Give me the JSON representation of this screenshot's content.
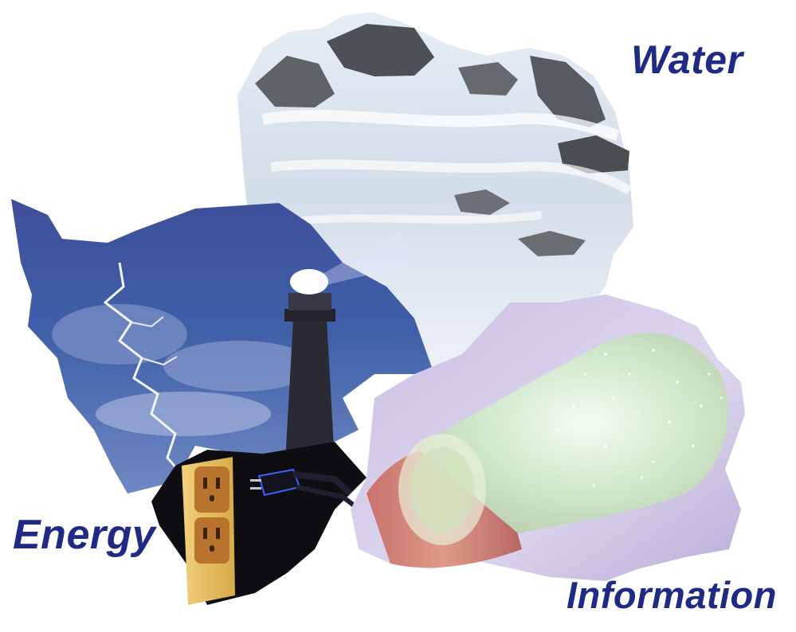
{
  "labels": {
    "water": "Water",
    "energy": "Energy",
    "information": "Information"
  },
  "colors": {
    "label_text": "#1f2a86",
    "background": "#ffffff"
  }
}
